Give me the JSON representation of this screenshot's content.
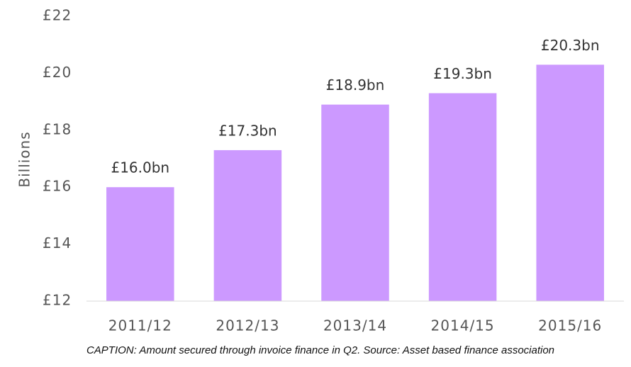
{
  "chart_data": {
    "type": "bar",
    "y_axis_label": "Billions",
    "categories": [
      "2011/12",
      "2012/13",
      "2013/14",
      "2014/15",
      "2015/16"
    ],
    "values": [
      16.0,
      17.3,
      18.9,
      19.3,
      20.3
    ],
    "value_labels": [
      "£16.0bn",
      "£17.3bn",
      "£18.9bn",
      "£19.3bn",
      "£20.3bn"
    ],
    "color": "#cc99ff",
    "ylim": [
      12,
      22
    ],
    "yticks": [
      {
        "value": 12,
        "label": "£12"
      },
      {
        "value": 14,
        "label": "£14"
      },
      {
        "value": 16,
        "label": "£16"
      },
      {
        "value": 18,
        "label": "£18"
      },
      {
        "value": 20,
        "label": "£20"
      },
      {
        "value": 22,
        "label": "£22"
      }
    ],
    "grid": false,
    "caption": "CAPTION: Amount secured through invoice finance in Q2. Source: Asset based finance association"
  }
}
